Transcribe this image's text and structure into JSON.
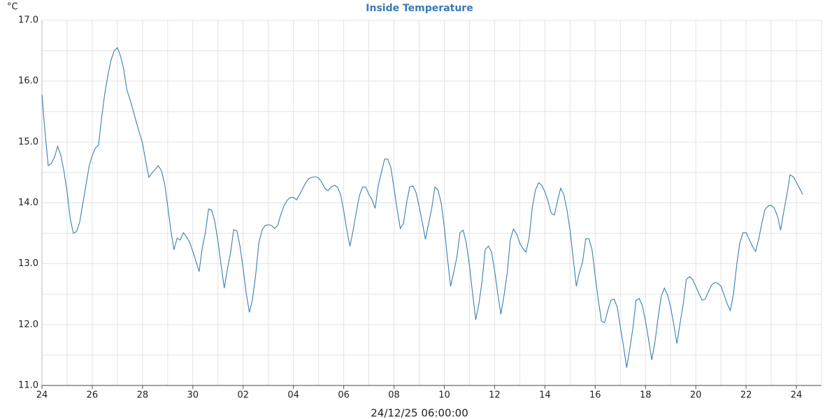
{
  "chart_data": {
    "type": "line",
    "title": "Inside Temperature",
    "y_label": "°C",
    "x_label": "24/12/25 06:00:00",
    "xlim": [
      0,
      31
    ],
    "ylim": [
      11,
      17
    ],
    "xticks": [
      {
        "value": 0,
        "label": "24"
      },
      {
        "value": 2,
        "label": "26"
      },
      {
        "value": 4,
        "label": "28"
      },
      {
        "value": 6,
        "label": "30"
      },
      {
        "value": 8,
        "label": "02"
      },
      {
        "value": 10,
        "label": "04"
      },
      {
        "value": 12,
        "label": "06"
      },
      {
        "value": 14,
        "label": "08"
      },
      {
        "value": 16,
        "label": "10"
      },
      {
        "value": 18,
        "label": "12"
      },
      {
        "value": 20,
        "label": "14"
      },
      {
        "value": 22,
        "label": "16"
      },
      {
        "value": 24,
        "label": "18"
      },
      {
        "value": 26,
        "label": "20"
      },
      {
        "value": 28,
        "label": "22"
      },
      {
        "value": 30,
        "label": "24"
      }
    ],
    "x_minor_ticks": [
      1,
      3,
      5,
      7,
      9,
      11,
      13,
      15,
      17,
      19,
      21,
      23,
      25,
      27,
      29
    ],
    "yticks": [
      {
        "value": 11,
        "label": "11.0"
      },
      {
        "value": 12,
        "label": "12.0"
      },
      {
        "value": 13,
        "label": "13.0"
      },
      {
        "value": 14,
        "label": "14.0"
      },
      {
        "value": 15,
        "label": "15.0"
      },
      {
        "value": 16,
        "label": "16.0"
      },
      {
        "value": 17,
        "label": "17.0"
      }
    ],
    "y_minor_ticks": [
      11.5,
      12.5,
      13.5,
      14.5,
      15.5,
      16.5
    ],
    "grid": true,
    "x": [
      0,
      0.125,
      0.25,
      0.375,
      0.5,
      0.625,
      0.75,
      0.875,
      1,
      1.125,
      1.25,
      1.375,
      1.5,
      1.625,
      1.75,
      1.875,
      2,
      2.125,
      2.25,
      2.375,
      2.5,
      2.625,
      2.75,
      2.875,
      3,
      3.125,
      3.25,
      3.375,
      3.5,
      3.625,
      3.75,
      3.875,
      4,
      4.125,
      4.25,
      4.375,
      4.5,
      4.625,
      4.75,
      4.875,
      5,
      5.125,
      5.25,
      5.375,
      5.5,
      5.625,
      5.75,
      5.875,
      6,
      6.125,
      6.25,
      6.375,
      6.5,
      6.625,
      6.75,
      6.875,
      7,
      7.125,
      7.25,
      7.375,
      7.5,
      7.625,
      7.75,
      7.875,
      8,
      8.125,
      8.25,
      8.375,
      8.5,
      8.625,
      8.75,
      8.875,
      9,
      9.125,
      9.25,
      9.375,
      9.5,
      9.625,
      9.75,
      9.875,
      10,
      10.125,
      10.25,
      10.375,
      10.5,
      10.625,
      10.75,
      10.875,
      11,
      11.125,
      11.25,
      11.375,
      11.5,
      11.625,
      11.75,
      11.875,
      12,
      12.125,
      12.25,
      12.375,
      12.5,
      12.625,
      12.75,
      12.875,
      13,
      13.125,
      13.25,
      13.375,
      13.5,
      13.625,
      13.75,
      13.875,
      14,
      14.125,
      14.25,
      14.375,
      14.5,
      14.625,
      14.75,
      14.875,
      15,
      15.125,
      15.25,
      15.375,
      15.5,
      15.625,
      15.75,
      15.875,
      16,
      16.125,
      16.25,
      16.375,
      16.5,
      16.625,
      16.75,
      16.875,
      17,
      17.125,
      17.25,
      17.375,
      17.5,
      17.625,
      17.75,
      17.875,
      18,
      18.125,
      18.25,
      18.375,
      18.5,
      18.625,
      18.75,
      18.875,
      19,
      19.125,
      19.25,
      19.375,
      19.5,
      19.625,
      19.75,
      19.875,
      20,
      20.125,
      20.25,
      20.375,
      20.5,
      20.625,
      20.75,
      20.875,
      21,
      21.125,
      21.25,
      21.375,
      21.5,
      21.625,
      21.75,
      21.875,
      22,
      22.125,
      22.25,
      22.375,
      22.5,
      22.625,
      22.75,
      22.875,
      23,
      23.125,
      23.25,
      23.375,
      23.5,
      23.625,
      23.75,
      23.875,
      24,
      24.125,
      24.25,
      24.375,
      24.5,
      24.625,
      24.75,
      24.875,
      25,
      25.125,
      25.25,
      25.375,
      25.5,
      25.625,
      25.75,
      25.875,
      26,
      26.125,
      26.25,
      26.375,
      26.5,
      26.625,
      26.75,
      26.875,
      27,
      27.125,
      27.25,
      27.375,
      27.5,
      27.625,
      27.75,
      27.875,
      28,
      28.125,
      28.25,
      28.375,
      28.5,
      28.625,
      28.75,
      28.875,
      29,
      29.125,
      29.25,
      29.375,
      29.5,
      29.625,
      29.75,
      29.875,
      30,
      30.125,
      30.25
    ],
    "series": [
      {
        "name": "Inside Temperature",
        "color": "#3a7fb5",
        "values": [
          15.78,
          15.15,
          14.61,
          14.65,
          14.75,
          14.93,
          14.78,
          14.52,
          14.18,
          13.74,
          13.5,
          13.53,
          13.68,
          13.99,
          14.29,
          14.6,
          14.78,
          14.9,
          14.95,
          15.4,
          15.8,
          16.1,
          16.35,
          16.5,
          16.55,
          16.41,
          16.2,
          15.86,
          15.7,
          15.52,
          15.33,
          15.15,
          14.98,
          14.69,
          14.42,
          14.49,
          14.55,
          14.61,
          14.53,
          14.32,
          13.95,
          13.55,
          13.23,
          13.42,
          13.39,
          13.51,
          13.44,
          13.35,
          13.2,
          13.04,
          12.87,
          13.26,
          13.51,
          13.9,
          13.88,
          13.69,
          13.37,
          12.97,
          12.6,
          12.91,
          13.18,
          13.56,
          13.54,
          13.29,
          12.92,
          12.51,
          12.2,
          12.42,
          12.82,
          13.34,
          13.55,
          13.63,
          13.64,
          13.63,
          13.58,
          13.63,
          13.81,
          13.95,
          14.04,
          14.09,
          14.09,
          14.05,
          14.14,
          14.24,
          14.34,
          14.4,
          14.42,
          14.43,
          14.41,
          14.34,
          14.24,
          14.2,
          14.26,
          14.29,
          14.26,
          14.14,
          13.87,
          13.55,
          13.29,
          13.55,
          13.85,
          14.12,
          14.26,
          14.26,
          14.14,
          14.05,
          13.91,
          14.29,
          14.5,
          14.72,
          14.72,
          14.58,
          14.24,
          13.89,
          13.58,
          13.66,
          14.0,
          14.26,
          14.28,
          14.17,
          13.94,
          13.68,
          13.4,
          13.66,
          13.91,
          14.26,
          14.21,
          14.0,
          13.6,
          13.09,
          12.63,
          12.86,
          13.11,
          13.51,
          13.55,
          13.34,
          12.97,
          12.51,
          12.08,
          12.34,
          12.71,
          13.23,
          13.29,
          13.2,
          12.89,
          12.51,
          12.17,
          12.48,
          12.84,
          13.4,
          13.57,
          13.49,
          13.34,
          13.25,
          13.19,
          13.43,
          13.93,
          14.21,
          14.33,
          14.29,
          14.18,
          14.03,
          13.83,
          13.8,
          14.03,
          14.24,
          14.14,
          13.89,
          13.55,
          13.09,
          12.63,
          12.86,
          13.03,
          13.41,
          13.41,
          13.23,
          12.8,
          12.4,
          12.06,
          12.03,
          12.23,
          12.4,
          12.42,
          12.29,
          11.96,
          11.65,
          11.29,
          11.6,
          11.94,
          12.4,
          12.43,
          12.31,
          12.06,
          11.75,
          11.42,
          11.71,
          12.11,
          12.46,
          12.6,
          12.49,
          12.29,
          12.0,
          11.69,
          12.02,
          12.34,
          12.74,
          12.79,
          12.74,
          12.63,
          12.51,
          12.4,
          12.42,
          12.54,
          12.65,
          12.69,
          12.68,
          12.63,
          12.49,
          12.34,
          12.23,
          12.51,
          12.97,
          13.34,
          13.51,
          13.51,
          13.4,
          13.29,
          13.2,
          13.4,
          13.66,
          13.89,
          13.95,
          13.96,
          13.91,
          13.78,
          13.55,
          13.86,
          14.14,
          14.46,
          14.43,
          14.34,
          14.24,
          14.14
        ]
      }
    ]
  }
}
